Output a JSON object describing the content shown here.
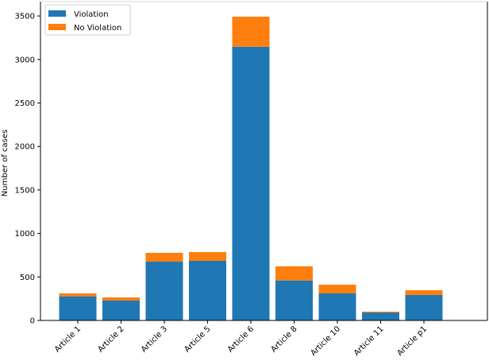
{
  "chart_data": {
    "type": "bar",
    "stacked": true,
    "title": "",
    "xlabel": "",
    "ylabel": "Number of cases",
    "ylim": [
      0,
      3650
    ],
    "yticks": [
      0,
      500,
      1000,
      1500,
      2000,
      2500,
      3000,
      3500
    ],
    "grid": false,
    "legend_position": "upper left",
    "categories": [
      "Article 1",
      "Article 2",
      "Article 3",
      "Article 5",
      "Article 6",
      "Article 8",
      "Article 10",
      "Article 11",
      "Article p1"
    ],
    "series": [
      {
        "name": "Violation",
        "color": "#1f77b4",
        "values": [
          277,
          229,
          676,
          686,
          3147,
          460,
          311,
          91,
          293
        ]
      },
      {
        "name": "No Violation",
        "color": "#ff7f0e",
        "values": [
          34,
          36,
          101,
          100,
          345,
          162,
          100,
          10,
          54
        ]
      }
    ]
  }
}
